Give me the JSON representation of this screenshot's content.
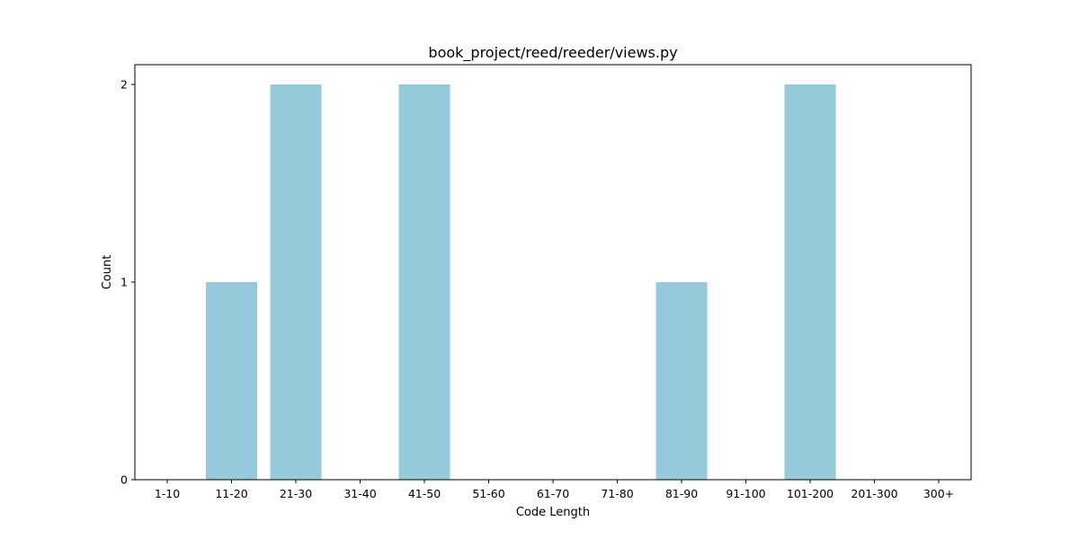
{
  "chart_data": {
    "type": "bar",
    "title": "book_project/reed/reeder/views.py",
    "xlabel": "Code Length",
    "ylabel": "Count",
    "categories": [
      "1-10",
      "11-20",
      "21-30",
      "31-40",
      "41-50",
      "51-60",
      "61-70",
      "71-80",
      "81-90",
      "91-100",
      "101-200",
      "201-300",
      "300+"
    ],
    "values": [
      0,
      1,
      2,
      0,
      2,
      0,
      0,
      0,
      1,
      0,
      2,
      0,
      0
    ],
    "ylim": [
      0,
      2.1
    ],
    "yticks": [
      "0",
      "1",
      "2"
    ],
    "grid": false,
    "bar_color": "#96c9dc"
  }
}
